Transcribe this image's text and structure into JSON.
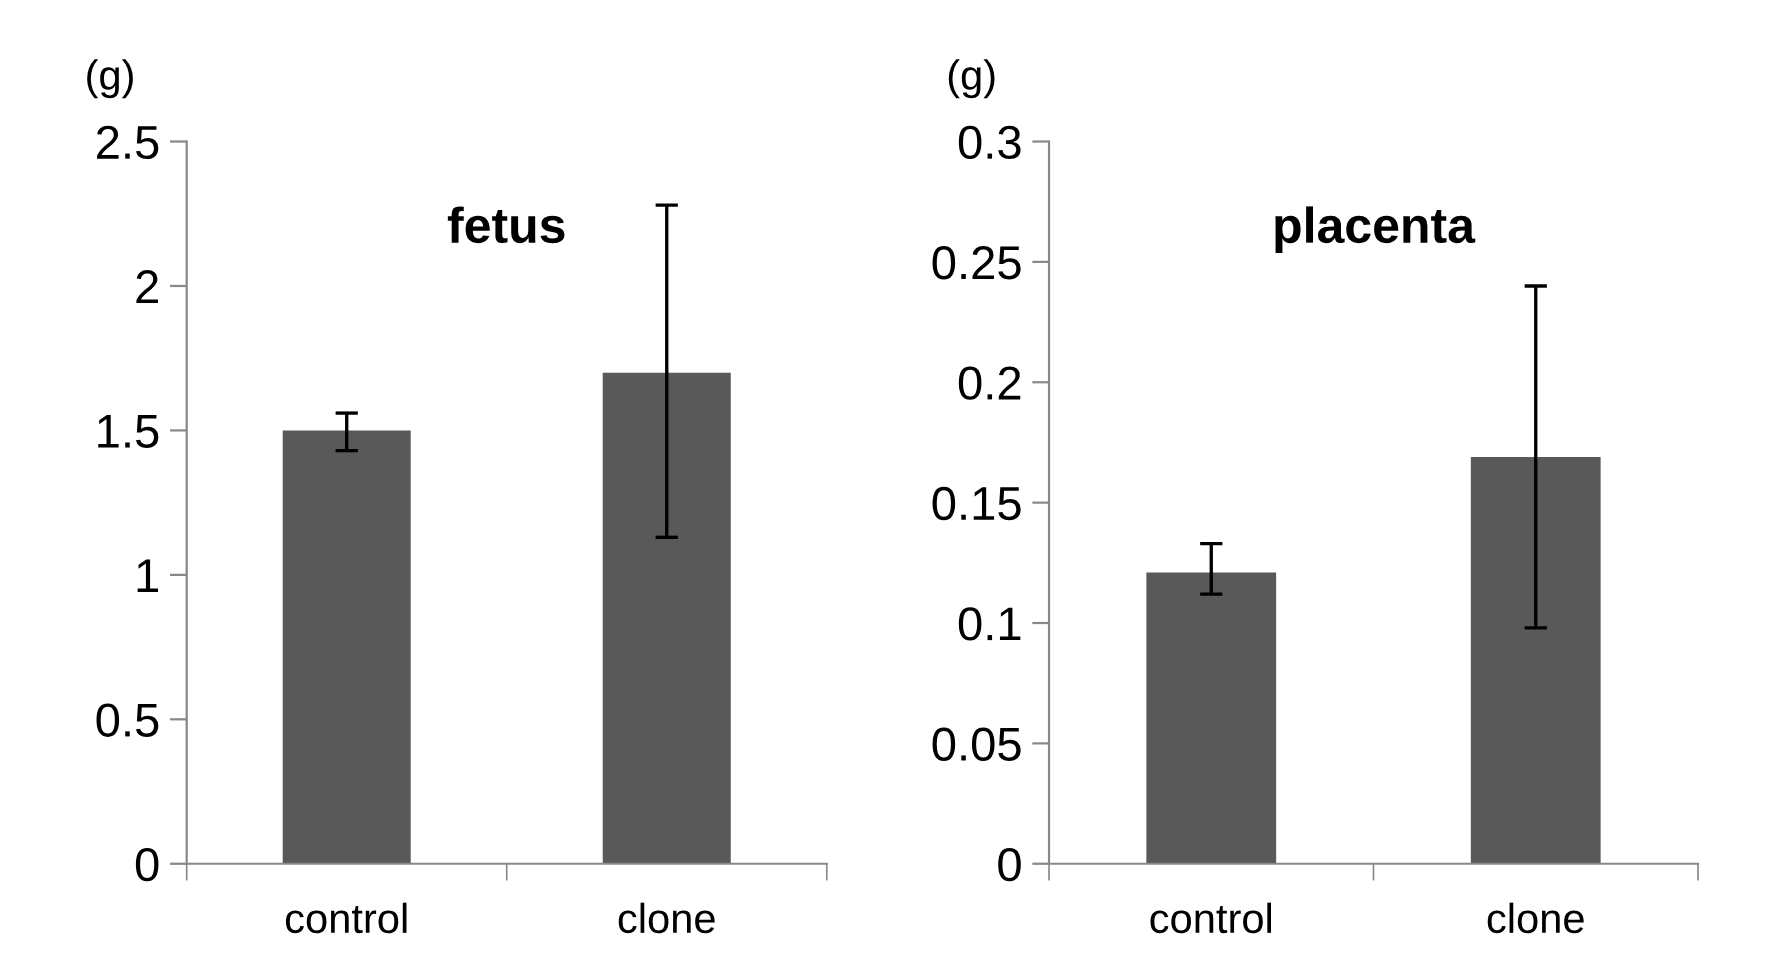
{
  "chart_data": [
    {
      "type": "bar",
      "title": "fetus",
      "ylabel": "(g)",
      "categories": [
        "control",
        "clone"
      ],
      "values": [
        1.5,
        1.7
      ],
      "color": "#595959",
      "errors": [
        [
          1.43,
          1.56
        ],
        [
          1.13,
          2.28
        ]
      ],
      "ylim": [
        0,
        2.5
      ],
      "yticks": [
        0,
        0.5,
        1,
        1.5,
        2,
        2.5
      ],
      "grid": false,
      "legend": false
    },
    {
      "type": "bar",
      "title": "placenta",
      "ylabel": "(g)",
      "categories": [
        "control",
        "clone"
      ],
      "values": [
        0.121,
        0.169
      ],
      "color": "#595959",
      "errors": [
        [
          0.112,
          0.133
        ],
        [
          0.098,
          0.24
        ]
      ],
      "ylim": [
        0,
        0.3
      ],
      "yticks": [
        0,
        0.05,
        0.1,
        0.15,
        0.2,
        0.25,
        0.3
      ],
      "grid": false,
      "legend": false
    }
  ]
}
